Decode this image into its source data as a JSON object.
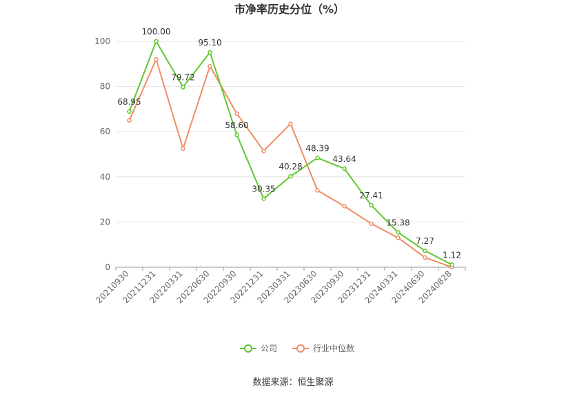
{
  "chart_data": {
    "type": "line",
    "title": "市净率历史分位（%）",
    "categories": [
      "20210930",
      "20211231",
      "20220331",
      "20220630",
      "20220930",
      "20221231",
      "20230331",
      "20230630",
      "20230930",
      "20231231",
      "20240331",
      "20240630",
      "20240828"
    ],
    "ylim": [
      0,
      100
    ],
    "yticks": [
      0,
      20,
      40,
      60,
      80,
      100
    ],
    "grid": true,
    "legend_position": "bottom",
    "series": [
      {
        "name": "公司",
        "color": "#5ec72f",
        "values": [
          68.95,
          100.0,
          79.72,
          95.1,
          58.6,
          30.35,
          40.28,
          48.39,
          43.64,
          27.41,
          15.38,
          7.27,
          1.12
        ],
        "labels": [
          "68.95",
          "100.00",
          "79.72",
          "95.10",
          "58.60",
          "30.35",
          "40.28",
          "48.39",
          "43.64",
          "27.41",
          "15.38",
          "7.27",
          "1.12"
        ]
      },
      {
        "name": "行业中位数",
        "color": "#f08c64",
        "values": [
          65,
          92,
          52.5,
          89,
          68,
          51.5,
          63.5,
          34,
          27,
          19.3,
          13,
          4.3,
          0
        ]
      }
    ]
  },
  "source_text": "数据来源：恒生聚源"
}
